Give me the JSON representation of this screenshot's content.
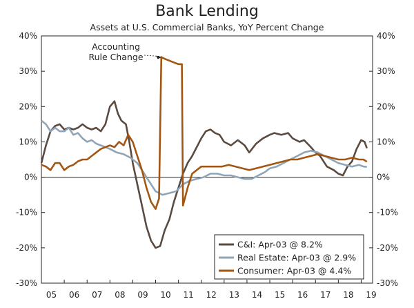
{
  "chart_data": {
    "type": "line",
    "title": "Bank Lending",
    "subtitle": "Assets at U.S. Commercial Banks, YoY Percent Change",
    "xlabel": "",
    "ylabel": "",
    "xlim": [
      2005,
      2019.5
    ],
    "ylim": [
      -30,
      40
    ],
    "y_ticks": [
      40,
      30,
      20,
      10,
      0,
      -10,
      -20,
      -30
    ],
    "y_tick_labels": [
      "40%",
      "30%",
      "20%",
      "10%",
      "0%",
      "-10%",
      "-20%",
      "-30%"
    ],
    "x_tick_labels": [
      "05",
      "06",
      "07",
      "08",
      "09",
      "10",
      "11",
      "12",
      "13",
      "14",
      "15",
      "16",
      "17",
      "18",
      "19"
    ],
    "grid": false,
    "legend_position": "bottom-right",
    "annotation": {
      "lines": [
        "Accounting",
        "Rule Change"
      ],
      "x": 2010.3,
      "y": 34
    },
    "series": [
      {
        "name": "C&I: Apr-03 @ 8.2%",
        "color": "#5a4a40",
        "points": [
          [
            2005,
            4
          ],
          [
            2005.2,
            9
          ],
          [
            2005.4,
            13
          ],
          [
            2005.6,
            14.5
          ],
          [
            2005.8,
            15
          ],
          [
            2006,
            13.5
          ],
          [
            2006.2,
            14
          ],
          [
            2006.4,
            13.5
          ],
          [
            2006.6,
            14
          ],
          [
            2006.8,
            15
          ],
          [
            2007,
            14
          ],
          [
            2007.2,
            13.5
          ],
          [
            2007.4,
            14
          ],
          [
            2007.6,
            13
          ],
          [
            2007.8,
            15
          ],
          [
            2008,
            20
          ],
          [
            2008.2,
            21.5
          ],
          [
            2008.35,
            18
          ],
          [
            2008.5,
            16
          ],
          [
            2008.7,
            15
          ],
          [
            2008.85,
            10
          ],
          [
            2009,
            4
          ],
          [
            2009.2,
            -2
          ],
          [
            2009.4,
            -8
          ],
          [
            2009.6,
            -14
          ],
          [
            2009.8,
            -18
          ],
          [
            2010,
            -20
          ],
          [
            2010.2,
            -19.5
          ],
          [
            2010.4,
            -15
          ],
          [
            2010.6,
            -12
          ],
          [
            2010.8,
            -7
          ],
          [
            2011,
            -3
          ],
          [
            2011.2,
            1
          ],
          [
            2011.4,
            4
          ],
          [
            2011.6,
            6
          ],
          [
            2011.8,
            8.5
          ],
          [
            2012,
            11
          ],
          [
            2012.2,
            13
          ],
          [
            2012.4,
            13.5
          ],
          [
            2012.6,
            12.5
          ],
          [
            2012.8,
            12
          ],
          [
            2013,
            10
          ],
          [
            2013.3,
            9
          ],
          [
            2013.6,
            10.5
          ],
          [
            2013.9,
            9
          ],
          [
            2014.1,
            7
          ],
          [
            2014.4,
            9.5
          ],
          [
            2014.7,
            11
          ],
          [
            2015,
            12
          ],
          [
            2015.2,
            12.5
          ],
          [
            2015.5,
            12
          ],
          [
            2015.8,
            12.5
          ],
          [
            2016,
            11
          ],
          [
            2016.3,
            10
          ],
          [
            2016.5,
            10.5
          ],
          [
            2016.8,
            8.5
          ],
          [
            2017,
            7
          ],
          [
            2017.2,
            6
          ],
          [
            2017.5,
            3
          ],
          [
            2017.8,
            2
          ],
          [
            2018,
            1
          ],
          [
            2018.2,
            0.5
          ],
          [
            2018.4,
            3
          ],
          [
            2018.6,
            4.5
          ],
          [
            2018.8,
            8
          ],
          [
            2019,
            10.5
          ],
          [
            2019.15,
            10
          ],
          [
            2019.25,
            8.2
          ]
        ]
      },
      {
        "name": "Real Estate: Apr-03 @ 2.9%",
        "color": "#8fa5b7",
        "points": [
          [
            2005,
            16
          ],
          [
            2005.2,
            15
          ],
          [
            2005.4,
            13
          ],
          [
            2005.6,
            14
          ],
          [
            2005.8,
            13
          ],
          [
            2006,
            13
          ],
          [
            2006.2,
            14
          ],
          [
            2006.4,
            12
          ],
          [
            2006.6,
            12.5
          ],
          [
            2006.8,
            11
          ],
          [
            2007,
            10
          ],
          [
            2007.2,
            10.5
          ],
          [
            2007.4,
            9.5
          ],
          [
            2007.6,
            9
          ],
          [
            2007.8,
            8.5
          ],
          [
            2008,
            8
          ],
          [
            2008.3,
            7
          ],
          [
            2008.6,
            6.5
          ],
          [
            2008.9,
            5.5
          ],
          [
            2009.2,
            4
          ],
          [
            2009.5,
            1
          ],
          [
            2009.8,
            -2
          ],
          [
            2010,
            -4
          ],
          [
            2010.3,
            -5
          ],
          [
            2010.6,
            -4.5
          ],
          [
            2010.9,
            -4
          ],
          [
            2011.2,
            -2
          ],
          [
            2011.5,
            -1
          ],
          [
            2011.8,
            -0.5
          ],
          [
            2012.1,
            0
          ],
          [
            2012.4,
            1
          ],
          [
            2012.7,
            1
          ],
          [
            2013,
            0.5
          ],
          [
            2013.3,
            0.5
          ],
          [
            2013.6,
            0
          ],
          [
            2013.9,
            -0.5
          ],
          [
            2014.2,
            -0.5
          ],
          [
            2014.5,
            0.5
          ],
          [
            2014.8,
            1.5
          ],
          [
            2015,
            2.5
          ],
          [
            2015.3,
            3
          ],
          [
            2015.6,
            4
          ],
          [
            2015.9,
            5
          ],
          [
            2016.2,
            6
          ],
          [
            2016.5,
            7
          ],
          [
            2016.8,
            7.5
          ],
          [
            2017.1,
            7
          ],
          [
            2017.4,
            6
          ],
          [
            2017.7,
            5
          ],
          [
            2018,
            4
          ],
          [
            2018.3,
            3.5
          ],
          [
            2018.6,
            3
          ],
          [
            2018.9,
            3.5
          ],
          [
            2019.1,
            3
          ],
          [
            2019.25,
            2.9
          ]
        ]
      },
      {
        "name": "Consumer: Apr-03 @ 4.4%",
        "color": "#a35512",
        "points": [
          [
            2005,
            3.5
          ],
          [
            2005.2,
            3
          ],
          [
            2005.4,
            2
          ],
          [
            2005.6,
            4
          ],
          [
            2005.8,
            4
          ],
          [
            2006,
            2
          ],
          [
            2006.2,
            3
          ],
          [
            2006.4,
            3.5
          ],
          [
            2006.6,
            4.5
          ],
          [
            2006.8,
            5
          ],
          [
            2007,
            5
          ],
          [
            2007.2,
            6
          ],
          [
            2007.4,
            7
          ],
          [
            2007.6,
            8
          ],
          [
            2007.8,
            8.5
          ],
          [
            2008,
            9
          ],
          [
            2008.2,
            8.5
          ],
          [
            2008.4,
            10
          ],
          [
            2008.6,
            9
          ],
          [
            2008.8,
            12
          ],
          [
            2009,
            10
          ],
          [
            2009.2,
            6
          ],
          [
            2009.4,
            2
          ],
          [
            2009.6,
            -3
          ],
          [
            2009.8,
            -7
          ],
          [
            2010,
            -9
          ],
          [
            2010.15,
            -6
          ],
          [
            2010.25,
            34
          ],
          [
            2010.4,
            33.5
          ],
          [
            2010.6,
            33
          ],
          [
            2010.8,
            32.5
          ],
          [
            2011,
            32
          ],
          [
            2011.15,
            32
          ],
          [
            2011.2,
            -8
          ],
          [
            2011.4,
            -3
          ],
          [
            2011.6,
            1
          ],
          [
            2011.8,
            2
          ],
          [
            2012,
            3
          ],
          [
            2012.3,
            3
          ],
          [
            2012.6,
            3
          ],
          [
            2012.9,
            3
          ],
          [
            2013.2,
            3.5
          ],
          [
            2013.5,
            3
          ],
          [
            2013.8,
            2.5
          ],
          [
            2014.1,
            2
          ],
          [
            2014.4,
            2.5
          ],
          [
            2014.7,
            3
          ],
          [
            2015,
            3.5
          ],
          [
            2015.3,
            4
          ],
          [
            2015.6,
            4.5
          ],
          [
            2015.9,
            5
          ],
          [
            2016.2,
            5
          ],
          [
            2016.5,
            5.5
          ],
          [
            2016.8,
            6
          ],
          [
            2017.1,
            6.5
          ],
          [
            2017.4,
            6
          ],
          [
            2017.7,
            5.5
          ],
          [
            2018,
            5
          ],
          [
            2018.3,
            5
          ],
          [
            2018.6,
            5.5
          ],
          [
            2018.9,
            5
          ],
          [
            2019.1,
            5
          ],
          [
            2019.25,
            4.4
          ]
        ]
      }
    ]
  }
}
